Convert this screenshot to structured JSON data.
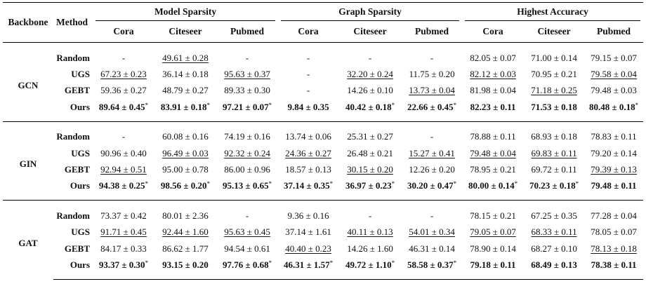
{
  "header": {
    "backbone": "Backbone",
    "method": "Method",
    "groups": [
      "Model Sparsity",
      "Graph Sparsity",
      "Highest Accuracy"
    ],
    "datasets": [
      "Cora",
      "Citeseer",
      "Pubmed",
      "Cora",
      "Citeseer",
      "Pubmed",
      "Cora",
      "Citeseer",
      "Pubmed"
    ]
  },
  "sections": [
    {
      "backbone": "GCN",
      "rows": [
        {
          "method": "Random",
          "cells": [
            {
              "t": "-"
            },
            {
              "t": "49.61 ± 0.28",
              "u": true
            },
            {
              "t": "-"
            },
            {
              "t": "-"
            },
            {
              "t": "-"
            },
            {
              "t": "-"
            },
            {
              "t": "82.05 ± 0.07"
            },
            {
              "t": "71.00 ± 0.14"
            },
            {
              "t": "79.15 ± 0.07"
            }
          ]
        },
        {
          "method": "UGS",
          "cells": [
            {
              "t": "67.23 ± 0.23",
              "u": true
            },
            {
              "t": "36.14 ± 0.18"
            },
            {
              "t": "95.63 ± 0.37",
              "u": true
            },
            {
              "t": "-"
            },
            {
              "t": "32.20 ± 0.24",
              "u": true
            },
            {
              "t": "11.75 ± 0.20"
            },
            {
              "t": "82.12 ± 0.03",
              "u": true
            },
            {
              "t": "70.95 ± 0.21"
            },
            {
              "t": "79.58 ± 0.04",
              "u": true
            }
          ]
        },
        {
          "method": "GEBT",
          "cells": [
            {
              "t": "59.36 ± 0.27"
            },
            {
              "t": "48.79 ± 0.27"
            },
            {
              "t": "89.33 ± 0.30"
            },
            {
              "t": "-"
            },
            {
              "t": "14.26 ± 0.10"
            },
            {
              "t": "13.73 ± 0.04",
              "u": true
            },
            {
              "t": "81.98 ± 0.04"
            },
            {
              "t": "71.18 ± 0.25",
              "u": true
            },
            {
              "t": "79.48 ± 0.03"
            }
          ]
        },
        {
          "method": "Ours",
          "cells": [
            {
              "t": "89.64 ± 0.45",
              "b": true,
              "s": "*"
            },
            {
              "t": "83.91 ± 0.18",
              "b": true,
              "s": "*"
            },
            {
              "t": "97.21 ± 0.07",
              "b": true,
              "s": "*"
            },
            {
              "t": "9.84 ± 0.35",
              "b": true
            },
            {
              "t": "40.42 ± 0.18",
              "b": true,
              "s": "*"
            },
            {
              "t": "22.66 ± 0.45",
              "b": true,
              "s": "*"
            },
            {
              "t": "82.23 ± 0.11",
              "b": true
            },
            {
              "t": "71.53 ± 0.18",
              "b": true
            },
            {
              "t": "80.48 ± 0.18",
              "b": true,
              "s": "*"
            }
          ]
        }
      ]
    },
    {
      "backbone": "GIN",
      "rows": [
        {
          "method": "Random",
          "cells": [
            {
              "t": "-"
            },
            {
              "t": "60.08 ± 0.16"
            },
            {
              "t": "74.19 ± 0.16"
            },
            {
              "t": "13.74 ± 0.06"
            },
            {
              "t": "25.31 ± 0.27"
            },
            {
              "t": "-"
            },
            {
              "t": "78.88 ± 0.11"
            },
            {
              "t": "68.93 ± 0.18"
            },
            {
              "t": "78.83 ± 0.11"
            }
          ]
        },
        {
          "method": "UGS",
          "cells": [
            {
              "t": "90.96 ± 0.40"
            },
            {
              "t": "96.49 ± 0.03",
              "u": true
            },
            {
              "t": "92.32 ± 0.24",
              "u": true
            },
            {
              "t": "24.36 ± 0.27",
              "u": true
            },
            {
              "t": "26.48 ± 0.21"
            },
            {
              "t": "15.27 ± 0.41",
              "u": true
            },
            {
              "t": "79.48 ± 0.04",
              "u": true
            },
            {
              "t": "69.83 ± 0.11",
              "u": true
            },
            {
              "t": "79.20 ± 0.14"
            }
          ]
        },
        {
          "method": "GEBT",
          "cells": [
            {
              "t": "92.94 ± 0.51",
              "u": true
            },
            {
              "t": "95.00 ± 0.78"
            },
            {
              "t": "86.00 ± 0.96"
            },
            {
              "t": "18.57 ± 0.13"
            },
            {
              "t": "30.15 ± 0.20",
              "u": true
            },
            {
              "t": "12.26 ± 0.20"
            },
            {
              "t": "78.95 ± 0.21"
            },
            {
              "t": "69.72 ± 0.11"
            },
            {
              "t": "79.39 ± 0.13",
              "u": true
            }
          ]
        },
        {
          "method": "Ours",
          "cells": [
            {
              "t": "94.38 ± 0.25",
              "b": true,
              "s": "*"
            },
            {
              "t": "98.56 ± 0.20",
              "b": true,
              "s": "*"
            },
            {
              "t": "95.13 ± 0.65",
              "b": true,
              "s": "*"
            },
            {
              "t": "37.14 ± 0.35",
              "b": true,
              "s": "*"
            },
            {
              "t": "36.97 ± 0.23",
              "b": true,
              "s": "*"
            },
            {
              "t": "30.20 ± 0.47",
              "b": true,
              "s": "*"
            },
            {
              "t": "80.00 ± 0.14",
              "b": true,
              "s": "*"
            },
            {
              "t": "70.23 ± 0.18",
              "b": true,
              "s": "*"
            },
            {
              "t": "79.48 ± 0.11",
              "b": true
            }
          ]
        }
      ]
    },
    {
      "backbone": "GAT",
      "rows": [
        {
          "method": "Random",
          "cells": [
            {
              "t": "73.37 ± 0.42"
            },
            {
              "t": "80.01 ± 2.36"
            },
            {
              "t": "-"
            },
            {
              "t": "9.36 ± 0.16"
            },
            {
              "t": "-"
            },
            {
              "t": "-"
            },
            {
              "t": "78.15 ± 0.21"
            },
            {
              "t": "67.25 ± 0.35"
            },
            {
              "t": "77.28 ± 0.04"
            }
          ]
        },
        {
          "method": "UGS",
          "cells": [
            {
              "t": "91.71 ± 0.45",
              "u": true
            },
            {
              "t": "92.44 ± 1.60",
              "u": true
            },
            {
              "t": "95.63 ± 0.45",
              "u": true
            },
            {
              "t": "37.14 ± 1.61"
            },
            {
              "t": "40.11 ± 0.13",
              "u": true
            },
            {
              "t": "54.01 ± 0.34",
              "u": true
            },
            {
              "t": "79.05 ± 0.07",
              "u": true
            },
            {
              "t": "68.33 ± 0.11",
              "u": true
            },
            {
              "t": "78.05 ± 0.07"
            }
          ]
        },
        {
          "method": "GEBT",
          "cells": [
            {
              "t": "84.17 ± 0.33"
            },
            {
              "t": "86.62 ± 1.77"
            },
            {
              "t": "94.54 ± 0.61"
            },
            {
              "t": "40.40 ± 0.23",
              "u": true
            },
            {
              "t": "14.26 ± 1.60"
            },
            {
              "t": "46.31 ± 0.14"
            },
            {
              "t": "78.90 ± 0.14"
            },
            {
              "t": "68.27 ± 0.10"
            },
            {
              "t": "78.13 ± 0.18",
              "u": true
            }
          ]
        },
        {
          "method": "Ours",
          "cells": [
            {
              "t": "93.37 ± 0.30",
              "b": true,
              "s": "*"
            },
            {
              "t": "93.15 ± 0.20",
              "b": true
            },
            {
              "t": "97.76 ± 0.68",
              "b": true,
              "s": "*"
            },
            {
              "t": "46.31 ± 1.57",
              "b": true,
              "s": "*"
            },
            {
              "t": "49.72 ± 1.10",
              "b": true,
              "s": "*"
            },
            {
              "t": "58.58 ± 0.37",
              "b": true,
              "s": "*"
            },
            {
              "t": "79.18 ± 0.11",
              "b": true
            },
            {
              "t": "68.49 ± 0.13",
              "b": true
            },
            {
              "t": "78.38 ± 0.11",
              "b": true
            }
          ]
        }
      ]
    }
  ]
}
